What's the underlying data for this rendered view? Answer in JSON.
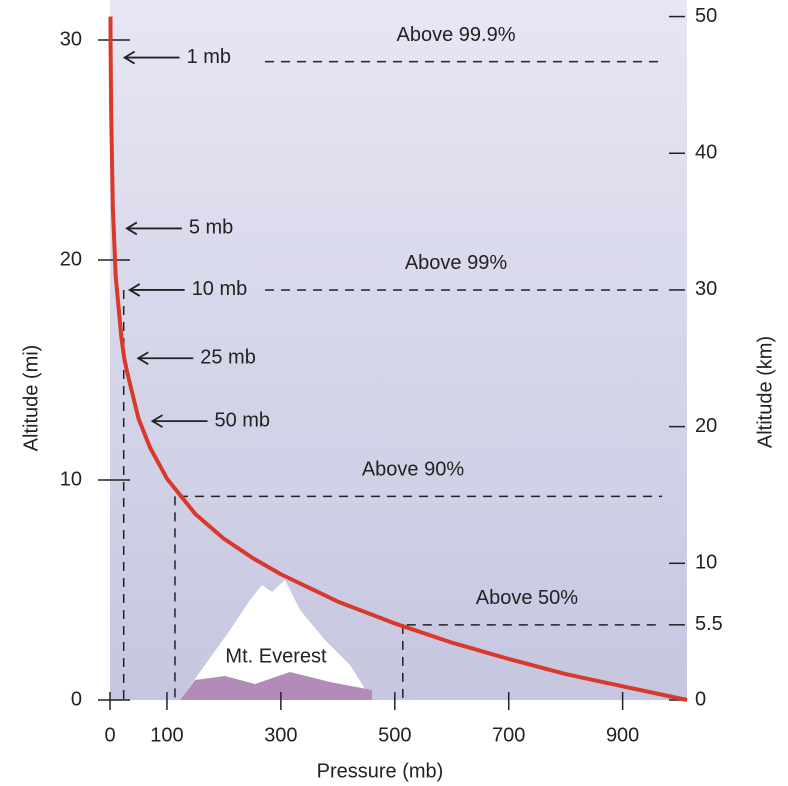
{
  "chart_data": {
    "type": "line",
    "xlabel": "Pressure (mb)",
    "ylabel": "Altitude (mi)",
    "y2label": "Altitude (km)",
    "xlim": [
      0,
      1013
    ],
    "xticks": [
      0,
      100,
      300,
      500,
      700,
      900
    ],
    "ylim": [
      0,
      31.5
    ],
    "yticks": [
      0,
      10,
      20,
      30
    ],
    "y2lim": [
      0,
      50.7
    ],
    "y2ticks": [
      0,
      5.5,
      10,
      20,
      30,
      40,
      50
    ],
    "x": [
      0.8,
      1,
      2,
      5,
      10,
      20,
      25,
      30,
      50,
      70,
      100,
      150,
      200,
      250,
      300,
      400,
      500,
      600,
      700,
      800,
      900,
      1013
    ],
    "series": [
      {
        "name": "Altitude (km)",
        "color": "#d8392b",
        "axis": "y2",
        "values": [
          50,
          48,
          43,
          36,
          31,
          26.5,
          25,
          24,
          20.6,
          18.5,
          16.2,
          13.6,
          11.8,
          10.4,
          9.2,
          7.2,
          5.6,
          4.2,
          3,
          1.9,
          1,
          0
        ]
      }
    ],
    "pressure_labels": [
      {
        "label": "1 mb",
        "pressure": 1,
        "altitude": 47
      },
      {
        "label": "5 mb",
        "pressure": 5,
        "altitude": 34.5
      },
      {
        "label": "10 mb",
        "pressure": 10,
        "altitude": 30
      },
      {
        "label": "25 mb",
        "pressure": 25,
        "altitude": 25
      },
      {
        "label": "50 mb",
        "pressure": 50,
        "altitude": 20.4
      }
    ],
    "levels": [
      {
        "label": "Above 99.9%",
        "pressure": 1,
        "altitude": 46.7
      },
      {
        "label": "Above 99%",
        "pressure": 10,
        "altitude": 30
      },
      {
        "label": "Above 90%",
        "pressure": 100,
        "altitude": 14.9
      },
      {
        "label": "Above 50%",
        "pressure": 500,
        "altitude": 5.5
      }
    ],
    "annotations": [
      "Mt. Everest"
    ]
  }
}
